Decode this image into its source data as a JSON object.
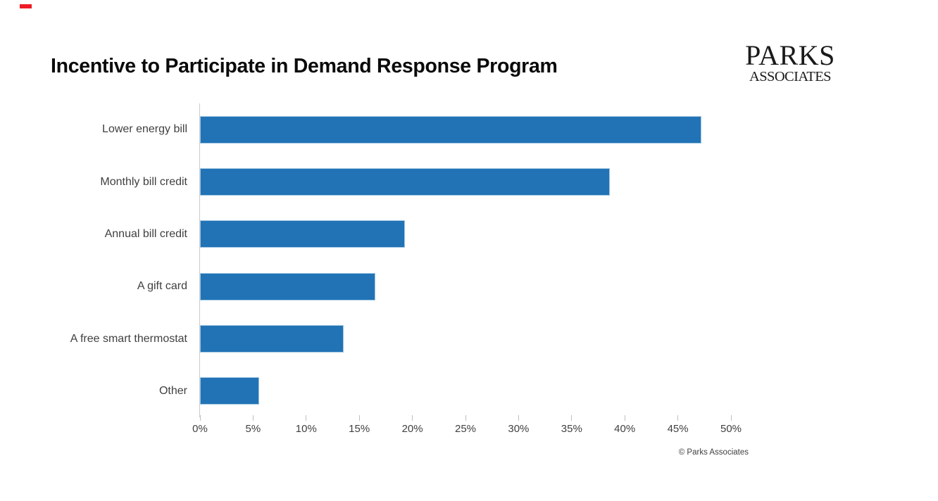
{
  "header": {
    "logo": {
      "line1": "PARKS",
      "line2": "ASSOCIATES"
    }
  },
  "chart_data": {
    "type": "bar",
    "orientation": "horizontal",
    "title": "Incentive to Participate in Demand Response Program",
    "categories": [
      "Lower energy bill",
      "Monthly bill credit",
      "Annual bill credit",
      "A gift card",
      "A free smart thermostat",
      "Other"
    ],
    "values": [
      47.2,
      38.6,
      19.3,
      16.5,
      13.5,
      5.6
    ],
    "xlabel": "",
    "ylabel": "",
    "xlim": [
      0,
      50
    ],
    "x_ticks": [
      "0%",
      "5%",
      "10%",
      "15%",
      "20%",
      "25%",
      "30%",
      "35%",
      "40%",
      "45%",
      "50%"
    ],
    "grid": false,
    "legend": false,
    "bar_color": "#2173b5",
    "bar_border_color": "#9fc5e2"
  },
  "footer": {
    "copyright": "© Parks Associates"
  }
}
